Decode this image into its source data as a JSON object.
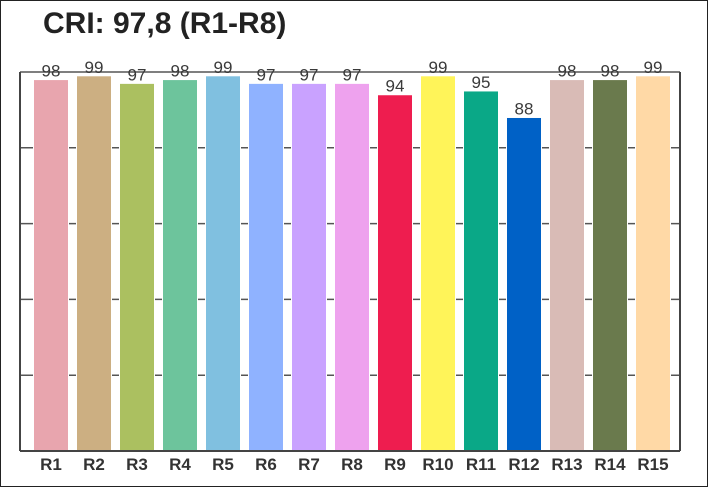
{
  "chart_data": {
    "type": "bar",
    "title": "CRI: 97,8 (R1-R8)",
    "categories": [
      "R1",
      "R2",
      "R3",
      "R4",
      "R5",
      "R6",
      "R7",
      "R8",
      "R9",
      "R10",
      "R11",
      "R12",
      "R13",
      "R14",
      "R15"
    ],
    "values": [
      98,
      99,
      97,
      98,
      99,
      97,
      97,
      97,
      94,
      99,
      95,
      88,
      98,
      98,
      99
    ],
    "colors": [
      "#e8a5ae",
      "#ccaf82",
      "#abc060",
      "#6dc49c",
      "#80c0e0",
      "#8fb2ff",
      "#c9a2ff",
      "#eea2ee",
      "#ee1d4f",
      "#fff459",
      "#0aa887",
      "#0061c6",
      "#d9bbb6",
      "#6a7a4d",
      "#ffd9a6"
    ],
    "ylim": [
      0,
      100
    ],
    "grid": true,
    "legend": "none"
  }
}
